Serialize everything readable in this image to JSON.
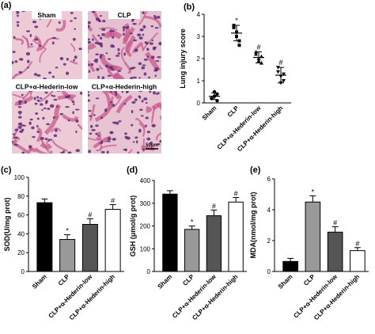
{
  "panels": {
    "a": "(a)",
    "b": "(b)",
    "c": "(c)",
    "d": "(d)",
    "e": "(e)"
  },
  "histology": {
    "labels": [
      "Sham",
      "CLP",
      "CLP+α-Hederin-low",
      "CLP+α-Hederin-high"
    ],
    "scale_bar": "50μm",
    "colors": {
      "background": "#eccbd6",
      "tissue": "#c85a8c",
      "nuclei": "#5c2a78"
    }
  },
  "chart_data": [
    {
      "panel": "b",
      "type": "scatter",
      "categories": [
        "Sham",
        "CLP",
        "CLP+α-Hederin-low",
        "CLP+α-Hederin-high"
      ],
      "points": [
        [
          0.2,
          0.3,
          0.4,
          0.2,
          0.5,
          0.1
        ],
        [
          3.5,
          3.0,
          2.8,
          3.4,
          3.2,
          2.6
        ],
        [
          2.2,
          2.0,
          1.8,
          2.3,
          1.9,
          2.1
        ],
        [
          1.6,
          1.2,
          1.0,
          1.4,
          0.9,
          1.3
        ]
      ],
      "means": [
        0.3,
        3.15,
        2.05,
        1.25
      ],
      "sd": [
        0.15,
        0.35,
        0.25,
        0.35
      ],
      "significance": [
        "",
        "*",
        "#",
        "#"
      ],
      "ylabel": "Lung injury score",
      "ylim": [
        0,
        4
      ],
      "yticks": [
        0,
        1,
        2,
        3,
        4
      ],
      "marker_shapes": [
        "circle",
        "square",
        "triangle",
        "triangle-down"
      ]
    },
    {
      "panel": "c",
      "type": "bar",
      "categories": [
        "Sham",
        "CLP",
        "CLP+α-Hederin-low",
        "CLP+α-Hederin-high"
      ],
      "values": [
        73,
        34,
        50,
        66
      ],
      "errors": [
        4,
        5,
        6,
        5
      ],
      "significance": [
        "",
        "*",
        "#",
        "#"
      ],
      "colors": [
        "#000000",
        "#999999",
        "#555555",
        "#ffffff"
      ],
      "ylabel": "SOD(U/mg prot)",
      "ylim": [
        0,
        100
      ],
      "yticks": [
        0,
        20,
        40,
        60,
        80,
        100
      ]
    },
    {
      "panel": "d",
      "type": "bar",
      "categories": [
        "Sham",
        "CLP",
        "CLP+α-Hederin-low",
        "CLP+α-Hederin-high"
      ],
      "values": [
        340,
        185,
        245,
        305
      ],
      "errors": [
        15,
        15,
        25,
        20
      ],
      "significance": [
        "",
        "*",
        "#",
        "#"
      ],
      "colors": [
        "#000000",
        "#999999",
        "#555555",
        "#ffffff"
      ],
      "ylabel": "GSH (μmol/g prot)",
      "ylim": [
        0,
        400
      ],
      "yticks": [
        0,
        100,
        200,
        300,
        400
      ]
    },
    {
      "panel": "e",
      "type": "bar",
      "categories": [
        "Sham",
        "CLP",
        "CLP+α-Hederin-low",
        "CLP+α-Hederin-high"
      ],
      "values": [
        0.65,
        4.5,
        2.55,
        1.35
      ],
      "errors": [
        0.2,
        0.4,
        0.35,
        0.2
      ],
      "significance": [
        "",
        "*",
        "#",
        "#"
      ],
      "colors": [
        "#000000",
        "#999999",
        "#555555",
        "#ffffff"
      ],
      "ylabel": "MDA(nmol/mg prot)",
      "ylim": [
        0,
        6
      ],
      "yticks": [
        0,
        2,
        4,
        6
      ]
    }
  ]
}
